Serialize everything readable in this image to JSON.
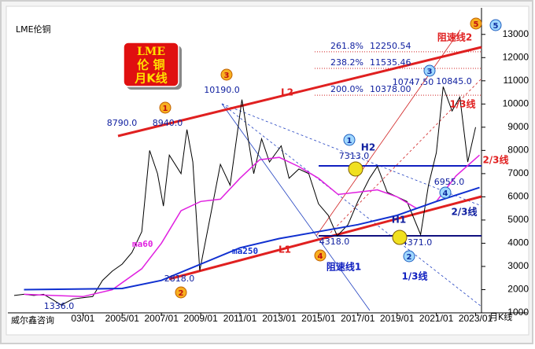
{
  "badge": [
    "LME",
    "伦 铜",
    "月K线"
  ],
  "footer_left": "威尔鑫咨询",
  "period_label": "月K线",
  "chart_data": {
    "type": "line",
    "xlim": [
      1999.5,
      2023.3
    ],
    "xticks": [
      {
        "value": 2003,
        "label": "03/01"
      },
      {
        "value": 2005,
        "label": "2005/01"
      },
      {
        "value": 2007,
        "label": "2007/01"
      },
      {
        "value": 2009,
        "label": "2009/01"
      },
      {
        "value": 2011,
        "label": "2011/01"
      },
      {
        "value": 2013,
        "label": "2013/01"
      },
      {
        "value": 2015,
        "label": "2015/01"
      },
      {
        "value": 2017,
        "label": "2017/01"
      },
      {
        "value": 2019,
        "label": "2019/01"
      },
      {
        "value": 2021,
        "label": "2021/01"
      },
      {
        "value": 2023,
        "label": "2023/01"
      }
    ],
    "ylim": [
      1000,
      13500
    ],
    "yticks": [
      1000,
      2000,
      3000,
      4000,
      5000,
      6000,
      7000,
      8000,
      9000,
      10000,
      11000,
      12000,
      13000
    ],
    "series": [
      {
        "name": "LME伦铜",
        "color": "#000000",
        "x": [
          1999.5,
          2000,
          2000.5,
          2001,
          2001.5,
          2001.9,
          2002.5,
          2003,
          2003.5,
          2004,
          2004.5,
          2005,
          2005.5,
          2006,
          2006.4,
          2006.8,
          2007.1,
          2007.4,
          2008,
          2008.3,
          2008.6,
          2008.95,
          2009.5,
          2010,
          2010.5,
          2011.1,
          2011.7,
          2012.1,
          2012.5,
          2013.1,
          2013.5,
          2014,
          2014.5,
          2015,
          2015.5,
          2015.95,
          2016.5,
          2017,
          2017.6,
          2018,
          2018.5,
          2019,
          2019.5,
          2020.2,
          2020.6,
          2021,
          2021.35,
          2021.8,
          2022.2,
          2022.6,
          2023
        ],
        "values": [
          1750,
          1800,
          1750,
          1800,
          1550,
          1336,
          1600,
          1650,
          1700,
          2400,
          2800,
          3100,
          3600,
          4500,
          8000,
          7000,
          5600,
          7800,
          7000,
          8900,
          7500,
          2818,
          5200,
          7400,
          6500,
          10190,
          7000,
          8500,
          7500,
          8200,
          6800,
          7200,
          7000,
          5700,
          5200,
          4318,
          4800,
          5800,
          6800,
          7313,
          6200,
          6000,
          5800,
          4371,
          6500,
          7900,
          10747.5,
          9700,
          10300,
          7500,
          9000
        ]
      },
      {
        "name": "ma60",
        "color": "#e020e0",
        "x": [
          2000,
          2001.5,
          2003,
          2004.5,
          2006,
          2007,
          2008,
          2009,
          2010,
          2011,
          2012,
          2013,
          2014,
          2015,
          2016,
          2017,
          2018,
          2019,
          2020,
          2021,
          2022,
          2023.2
        ],
        "values": [
          1800,
          1750,
          1700,
          2000,
          2900,
          4000,
          5400,
          5800,
          5900,
          6800,
          7600,
          7700,
          7300,
          6800,
          6100,
          6200,
          6300,
          6000,
          5500,
          5800,
          6900,
          7800
        ]
      },
      {
        "name": "ma250",
        "color": "#1030d0",
        "x": [
          2000,
          2005,
          2007,
          2009,
          2011,
          2013,
          2015,
          2017,
          2019,
          2021,
          2023.2
        ],
        "values": [
          2000,
          2050,
          2400,
          3100,
          3800,
          4200,
          4500,
          4800,
          5200,
          5800,
          6400
        ]
      }
    ],
    "price_labels": [
      {
        "value": 8790,
        "label": "8790.0"
      },
      {
        "value": 8940,
        "label": "8940.0"
      },
      {
        "value": 10190,
        "label": "10190.0"
      },
      {
        "value": 1336,
        "label": "1336.0"
      },
      {
        "value": 2818,
        "label": "2818.0"
      },
      {
        "value": 4318,
        "label": "4318.0"
      },
      {
        "value": 7313,
        "label": "7313.0"
      },
      {
        "value": 4371,
        "label": "4371.0"
      },
      {
        "value": 10747.5,
        "label": "10747.50"
      },
      {
        "value": 10845,
        "label": "10845.0"
      },
      {
        "value": 6955,
        "label": "6955.0"
      }
    ],
    "fib_levels": [
      {
        "ratio": "261.8%",
        "value": 12250.54,
        "label": "12250.54"
      },
      {
        "ratio": "238.2%",
        "value": 11535.46,
        "label": "11535.46"
      },
      {
        "ratio": "200.0%",
        "value": 10378,
        "label": "10378.00"
      }
    ],
    "line_labels": [
      "L2",
      "L1",
      "H2",
      "H1",
      "阻速线1",
      "阻速线2",
      "1/3线",
      "2/3线",
      "2/3线",
      "1/3线"
    ],
    "orange_markers": [
      "1",
      "2",
      "3",
      "4",
      "5"
    ],
    "blue_markers": [
      "1",
      "2",
      "3",
      "4",
      "5"
    ]
  }
}
